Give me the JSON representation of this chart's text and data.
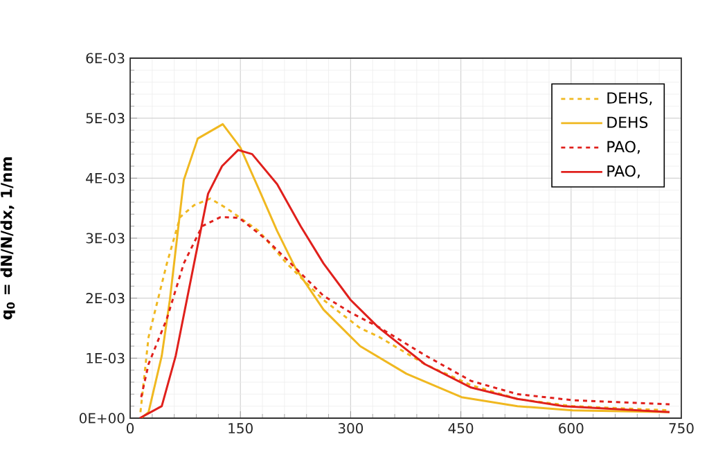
{
  "chart_data": {
    "type": "line",
    "ylabel": "q$_{0}$ = dN/N/dx, 1/nm",
    "xlim": [
      0,
      750
    ],
    "xticks": [
      0,
      150,
      300,
      450,
      600,
      750
    ],
    "ylim": [
      0,
      0.006
    ],
    "yticks": [
      {
        "value": 0,
        "label": "0E+00"
      },
      {
        "value": 0.001,
        "label": "1E-03"
      },
      {
        "value": 0.002,
        "label": "2E-03"
      },
      {
        "value": 0.003,
        "label": "3E-03"
      },
      {
        "value": 0.004,
        "label": "4E-03"
      },
      {
        "value": 0.005,
        "label": "5E-03"
      },
      {
        "value": 0.006,
        "label": "6E-03"
      }
    ],
    "grid": true,
    "legend": "top right",
    "marker": "none",
    "series": [
      {
        "name": "DEHS,",
        "color": "#f0b820",
        "line_style": "dashed",
        "x": [
          14,
          25,
          50,
          68,
          87,
          109,
          131,
          175,
          213,
          263,
          313,
          338,
          401,
          464,
          527,
          602,
          734
        ],
        "values": [
          0.0001,
          0.00135,
          0.00258,
          0.00335,
          0.00355,
          0.00366,
          0.0035,
          0.00312,
          0.00258,
          0.00197,
          0.0015,
          0.00136,
          0.0009,
          0.00055,
          0.00032,
          0.0002,
          0.00013
        ]
      },
      {
        "name": "DEHS",
        "color": "#f0b820",
        "line_style": "solid",
        "x": [
          15,
          25,
          43,
          54,
          73,
          92,
          126,
          150,
          175,
          200,
          225,
          263,
          313,
          376,
          451,
          527,
          602,
          734
        ],
        "values": [
          0,
          0.0001,
          0.00104,
          0.00197,
          0.00397,
          0.00466,
          0.0049,
          0.00451,
          0.00382,
          0.00312,
          0.0025,
          0.00181,
          0.0012,
          0.00074,
          0.00035,
          0.0002,
          0.00013,
          0.0001
        ]
      },
      {
        "name": "PAO,",
        "color": "#e0201c",
        "line_style": "dashed",
        "x": [
          15,
          25,
          50,
          73,
          98,
          123,
          148,
          186,
          225,
          263,
          300,
          338,
          401,
          464,
          527,
          602,
          734
        ],
        "values": [
          0.00035,
          0.0009,
          0.00166,
          0.00258,
          0.0032,
          0.00335,
          0.00334,
          0.00297,
          0.0025,
          0.00204,
          0.00176,
          0.00152,
          0.00105,
          0.00062,
          0.0004,
          0.0003,
          0.00023
        ]
      },
      {
        "name": "PAO,",
        "color": "#e0201c",
        "line_style": "solid",
        "x": [
          13,
          43,
          62,
          87,
          106,
          125,
          147,
          166,
          200,
          232,
          263,
          300,
          338,
          401,
          464,
          527,
          590,
          734
        ],
        "values": [
          0,
          0.0002,
          0.00104,
          0.00258,
          0.00374,
          0.0042,
          0.00447,
          0.0044,
          0.0039,
          0.0032,
          0.00258,
          0.00197,
          0.00151,
          0.0009,
          0.00051,
          0.00032,
          0.0002,
          0.0001
        ]
      }
    ]
  }
}
